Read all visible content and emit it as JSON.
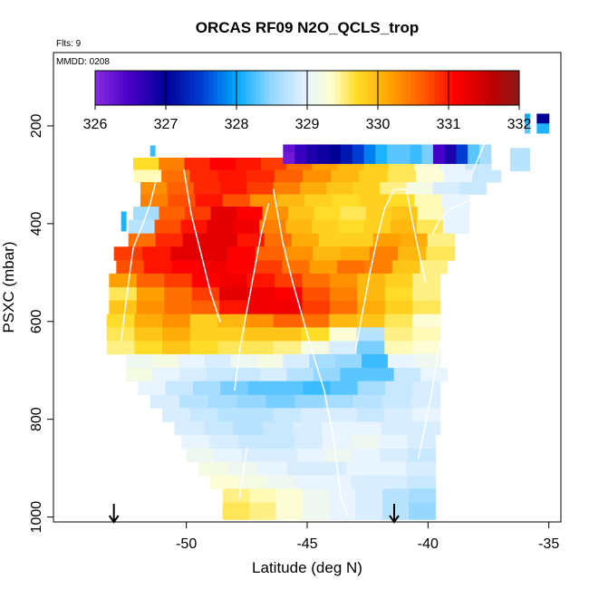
{
  "chart_data": {
    "type": "heatmap",
    "title": "ORCAS RF09 N2O_QCLS_trop",
    "flights_note": "Flts: 9",
    "date_note": "MMDD: 0208",
    "xlabel": "Latitude (deg N)",
    "ylabel": "PSXC (mbar)",
    "xlim": [
      -55.5,
      -34.5
    ],
    "ylim": [
      1010,
      50
    ],
    "x_ticks": [
      "-50",
      "-45",
      "-40",
      "-35"
    ],
    "x_tick_values": [
      -50,
      -45,
      -40,
      -35
    ],
    "y_ticks": [
      "200",
      "400",
      "600",
      "800",
      "1000"
    ],
    "y_tick_values": [
      200,
      400,
      600,
      800,
      1000
    ],
    "colorbar": {
      "ticks": [
        "326",
        "327",
        "328",
        "329",
        "330",
        "331",
        "332"
      ],
      "tick_values": [
        326,
        327,
        328,
        329,
        330,
        331,
        332
      ],
      "range": [
        326,
        332
      ]
    },
    "markers": [
      {
        "lat": -53.0,
        "label": "down-arrow"
      },
      {
        "lat": -41.4,
        "label": "down-arrow"
      }
    ],
    "bands": [
      {
        "p0": 265,
        "p1": 290,
        "lat0": -52.2,
        "lat1": -37.4,
        "values": [
          329.7,
          330.4,
          330.9,
          331.1,
          331.0,
          330.8,
          330.5,
          330.2,
          330.0,
          329.8,
          329.6,
          329.3,
          329.0,
          328.8
        ]
      },
      {
        "p0": 290,
        "p1": 315,
        "lat0": -52.2,
        "lat1": -37.0,
        "values": [
          329.4,
          330.5,
          330.9,
          331.0,
          330.9,
          330.6,
          330.3,
          330.0,
          329.8,
          329.6,
          329.3,
          329.0,
          328.8
        ]
      },
      {
        "p0": 315,
        "p1": 340,
        "lat0": -51.9,
        "lat1": -37.6,
        "values": [
          330.3,
          330.6,
          330.9,
          331.0,
          330.8,
          330.4,
          330.1,
          329.9,
          329.8,
          329.5,
          329.2,
          328.9,
          328.8
        ]
      },
      {
        "p0": 340,
        "p1": 365,
        "lat0": -51.9,
        "lat1": -38.3,
        "values": [
          330.4,
          330.7,
          331.0,
          330.7,
          330.3,
          330.0,
          329.8,
          329.7,
          329.8,
          329.7,
          329.4,
          329.0
        ]
      },
      {
        "p0": 365,
        "p1": 392,
        "lat0": -52.2,
        "lat1": -38.3,
        "values": [
          328.6,
          330.6,
          330.8,
          331.3,
          331.1,
          330.3,
          329.9,
          329.7,
          329.6,
          329.8,
          329.9,
          329.4,
          329.0
        ]
      },
      {
        "p0": 392,
        "p1": 420,
        "lat0": -52.4,
        "lat1": -38.3,
        "values": [
          328.7,
          330.7,
          331.0,
          331.3,
          331.2,
          330.4,
          330.0,
          329.8,
          329.7,
          329.8,
          330.0,
          329.6,
          329.0
        ]
      },
      {
        "p0": 420,
        "p1": 447,
        "lat0": -52.4,
        "lat1": -38.9,
        "values": [
          330.5,
          330.9,
          331.3,
          331.3,
          331.0,
          330.5,
          330.1,
          329.8,
          329.8,
          330.2,
          330.1,
          329.5
        ]
      },
      {
        "p0": 447,
        "p1": 475,
        "lat0": -53.0,
        "lat1": -38.9,
        "values": [
          330.8,
          331.0,
          331.3,
          331.3,
          331.1,
          330.6,
          330.3,
          330.0,
          330.1,
          330.4,
          330.0,
          329.6
        ]
      },
      {
        "p0": 475,
        "p1": 502,
        "lat0": -52.9,
        "lat1": -39.2,
        "values": [
          330.7,
          331.0,
          331.1,
          331.2,
          331.1,
          330.8,
          330.5,
          330.2,
          330.5,
          330.4,
          329.9,
          329.5
        ]
      },
      {
        "p0": 502,
        "p1": 530,
        "lat0": -53.2,
        "lat1": -39.5,
        "values": [
          330.2,
          330.6,
          330.8,
          331.1,
          331.2,
          331.0,
          330.8,
          330.5,
          330.3,
          330.0,
          329.8,
          329.5
        ]
      },
      {
        "p0": 530,
        "p1": 557,
        "lat0": -53.2,
        "lat1": -39.5,
        "values": [
          329.6,
          330.2,
          330.5,
          330.8,
          331.3,
          331.2,
          331.1,
          330.7,
          330.4,
          330.0,
          329.7,
          329.5
        ]
      },
      {
        "p0": 557,
        "p1": 585,
        "lat0": -53.2,
        "lat1": -39.5,
        "values": [
          329.9,
          330.3,
          330.5,
          330.6,
          331.0,
          331.2,
          331.2,
          330.8,
          330.5,
          330.1,
          329.8,
          329.6
        ]
      },
      {
        "p0": 585,
        "p1": 612,
        "lat0": -53.3,
        "lat1": -39.5,
        "values": [
          329.7,
          330.1,
          330.3,
          329.8,
          330.0,
          330.3,
          330.6,
          330.5,
          330.0,
          329.9,
          329.6,
          329.3
        ]
      },
      {
        "p0": 612,
        "p1": 640,
        "lat0": -53.3,
        "lat1": -39.5,
        "values": [
          329.6,
          329.9,
          330.1,
          329.8,
          329.8,
          329.9,
          329.9,
          329.7,
          329.3,
          328.7,
          329.5,
          329.4
        ]
      },
      {
        "p0": 640,
        "p1": 667,
        "lat0": -53.3,
        "lat1": -39.5,
        "values": [
          329.5,
          329.7,
          329.9,
          329.7,
          329.6,
          329.6,
          329.5,
          329.2,
          328.9,
          328.4,
          329.4,
          329.3
        ]
      },
      {
        "p0": 667,
        "p1": 695,
        "lat0": -52.5,
        "lat1": -39.5,
        "values": [
          329.1,
          329.2,
          329.0,
          328.9,
          329.1,
          329.2,
          328.9,
          328.6,
          328.5,
          328.2,
          329.0,
          329.1
        ]
      },
      {
        "p0": 695,
        "p1": 722,
        "lat0": -52.5,
        "lat1": -39.2,
        "values": [
          329.2,
          329.0,
          328.9,
          328.8,
          328.8,
          328.9,
          328.7,
          328.5,
          328.3,
          328.3,
          328.8,
          329.0
        ]
      },
      {
        "p0": 722,
        "p1": 750,
        "lat0": -52.0,
        "lat1": -39.5,
        "values": [
          329.0,
          328.8,
          328.6,
          328.4,
          328.3,
          328.3,
          328.2,
          328.3,
          328.6,
          328.8,
          328.9
        ]
      },
      {
        "p0": 750,
        "p1": 777,
        "lat0": -51.5,
        "lat1": -39.5,
        "values": [
          328.9,
          328.7,
          328.6,
          328.5,
          328.4,
          328.5,
          328.6,
          328.7,
          328.8,
          328.9
        ]
      },
      {
        "p0": 777,
        "p1": 805,
        "lat0": -51.0,
        "lat1": -39.5,
        "values": [
          328.9,
          328.8,
          328.7,
          328.7,
          328.8,
          328.9,
          328.9,
          328.8,
          328.9,
          329.0
        ]
      },
      {
        "p0": 805,
        "p1": 832,
        "lat0": -50.5,
        "lat1": -39.5,
        "values": [
          328.9,
          328.8,
          328.7,
          328.8,
          328.9,
          329.0,
          329.0,
          328.9,
          328.9
        ]
      },
      {
        "p0": 832,
        "p1": 860,
        "lat0": -50.2,
        "lat1": -39.7,
        "values": [
          329.0,
          328.9,
          328.8,
          328.8,
          328.9,
          329.0,
          329.1,
          329.0,
          328.9
        ]
      },
      {
        "p0": 860,
        "p1": 887,
        "lat0": -50.0,
        "lat1": -39.7,
        "values": [
          329.1,
          329.0,
          328.9,
          328.9,
          329.0,
          329.1,
          329.0,
          328.9,
          328.8
        ]
      },
      {
        "p0": 887,
        "p1": 915,
        "lat0": -49.5,
        "lat1": -39.7,
        "values": [
          329.2,
          329.1,
          329.0,
          328.9,
          328.9,
          329.0,
          329.0,
          328.9
        ]
      },
      {
        "p0": 915,
        "p1": 942,
        "lat0": -49.0,
        "lat1": -39.7,
        "values": [
          329.3,
          329.2,
          329.1,
          329.0,
          329.0,
          328.9,
          328.9,
          328.8
        ]
      },
      {
        "p0": 942,
        "p1": 970,
        "lat0": -48.5,
        "lat1": -39.7,
        "values": [
          329.5,
          329.4,
          329.3,
          329.1,
          329.0,
          328.9,
          328.7,
          328.6
        ]
      },
      {
        "p0": 970,
        "p1": 1005,
        "lat0": -48.5,
        "lat1": -39.7,
        "values": [
          329.6,
          329.5,
          329.3,
          329.1,
          329.0,
          328.9,
          328.7,
          328.5
        ]
      },
      {
        "p0": 252,
        "p1": 277,
        "lat0": -46.0,
        "lat1": -37.4,
        "values": [
          326.2,
          326.6,
          326.8,
          326.9,
          327.0,
          327.2,
          327.5,
          327.8,
          328.1,
          328.3,
          328.3,
          328.2,
          328.4,
          326.5,
          326.8,
          327.5,
          328.3,
          328.6
        ]
      },
      {
        "p0": 238,
        "p1": 252,
        "lat0": -46.0,
        "lat1": -37.4,
        "values": [
          326.3,
          326.6,
          326.8,
          326.9,
          327.0,
          327.2,
          327.5,
          327.8,
          328.1,
          328.3,
          328.3,
          328.2,
          328.4,
          326.5,
          326.8,
          327.5,
          328.3,
          328.6
        ]
      },
      {
        "p0": 245,
        "p1": 292,
        "lat0": -36.6,
        "lat1": -35.8,
        "values": [
          328.7
        ]
      },
      {
        "p0": 240,
        "p1": 262,
        "lat0": -51.5,
        "lat1": -51.3,
        "values": [
          328.2
        ]
      },
      {
        "p0": 375,
        "p1": 415,
        "lat0": -52.7,
        "lat1": -52.5,
        "values": [
          328.1
        ]
      },
      {
        "p0": 175,
        "p1": 195,
        "lat0": -36.0,
        "lat1": -35.8,
        "values": [
          328.0
        ]
      },
      {
        "p0": 195,
        "p1": 215,
        "lat0": -36.0,
        "lat1": -35.8,
        "values": [
          328.3
        ]
      },
      {
        "p0": 175,
        "p1": 195,
        "lat0": -35.5,
        "lat1": -35.0,
        "values": [
          327.0
        ]
      },
      {
        "p0": 195,
        "p1": 215,
        "lat0": -35.5,
        "lat1": -35.0,
        "values": [
          328.1
        ]
      }
    ],
    "flight_tracks": [
      [
        [
          -52.7,
          640
        ],
        [
          -52.5,
          560
        ],
        [
          -52.2,
          450
        ],
        [
          -51.8,
          400
        ],
        [
          -51.5,
          360
        ],
        [
          -51.2,
          300
        ]
      ],
      [
        [
          -50.1,
          290
        ],
        [
          -49.8,
          380
        ],
        [
          -49.4,
          460
        ],
        [
          -49.0,
          540
        ],
        [
          -48.6,
          600
        ]
      ],
      [
        [
          -48.0,
          740
        ],
        [
          -47.8,
          660
        ],
        [
          -47.5,
          580
        ],
        [
          -47.2,
          500
        ],
        [
          -46.9,
          420
        ],
        [
          -46.6,
          360
        ]
      ],
      [
        [
          -46.4,
          330
        ],
        [
          -46.0,
          440
        ],
        [
          -45.6,
          520
        ],
        [
          -45.2,
          590
        ],
        [
          -44.8,
          660
        ],
        [
          -44.3,
          740
        ],
        [
          -43.9,
          840
        ],
        [
          -43.6,
          960
        ],
        [
          -43.3,
          1000
        ]
      ],
      [
        [
          -43.0,
          660
        ],
        [
          -42.7,
          580
        ],
        [
          -42.4,
          500
        ],
        [
          -42.1,
          430
        ],
        [
          -41.8,
          370
        ],
        [
          -41.4,
          330
        ],
        [
          -40.9,
          330
        ],
        [
          -40.5,
          430
        ],
        [
          -40.1,
          520
        ]
      ],
      [
        [
          -39.8,
          420
        ],
        [
          -39.5,
          390
        ],
        [
          -39.1,
          370
        ],
        [
          -38.6,
          360
        ],
        [
          -38.2,
          350
        ]
      ],
      [
        [
          -38.2,
          300
        ],
        [
          -37.7,
          240
        ],
        [
          -37.3,
          200
        ]
      ],
      [
        [
          -47.5,
          860
        ],
        [
          -47.8,
          960
        ]
      ],
      [
        [
          -40.4,
          880
        ],
        [
          -39.9,
          760
        ],
        [
          -39.5,
          640
        ],
        [
          -39.1,
          560
        ]
      ]
    ]
  }
}
